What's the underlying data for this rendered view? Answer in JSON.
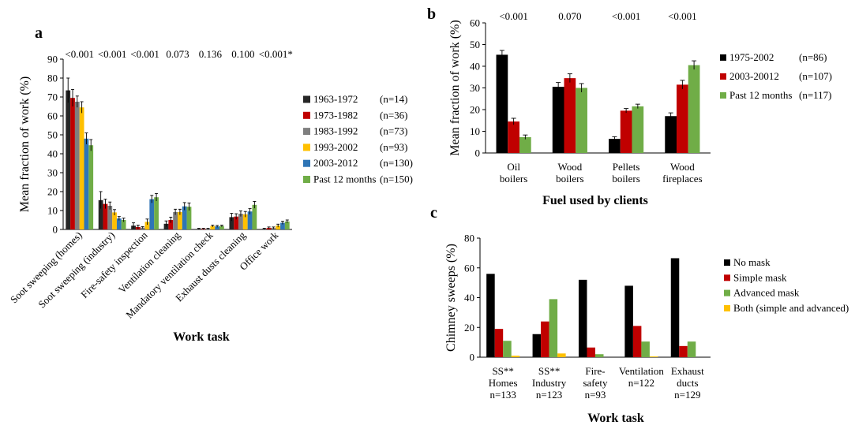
{
  "chart_data": [
    {
      "panel": "a",
      "type": "bar",
      "xlabel": "Work task",
      "ylabel": "Mean fraction of work (%)",
      "ylim": [
        0,
        90
      ],
      "yticks": [
        0,
        10,
        20,
        30,
        40,
        50,
        60,
        70,
        80,
        90
      ],
      "categories": [
        "Soot sweeping (homes)",
        "Soot sweeping (industry)",
        "Fire-safety inspection",
        "Ventilation cleaning",
        "Mandatory ventilation check",
        "Exhaust dusts cleaning",
        "Office work"
      ],
      "p_values": [
        "<0.001",
        "<0.001",
        "<0.001",
        "0.073",
        "0.136",
        "0.100",
        "<0.001*"
      ],
      "legend_position": "right",
      "series": [
        {
          "name": "1963-1972",
          "n": "(n=14)",
          "color": "#262626",
          "values": [
            73.5,
            15.5,
            2.0,
            3.0,
            0.3,
            6.5,
            0.3
          ],
          "errors": [
            6.5,
            4.5,
            1.5,
            1.5,
            0.3,
            2.0,
            0.3
          ]
        },
        {
          "name": "1973-1982",
          "n": "(n=36)",
          "color": "#c00000",
          "values": [
            69.5,
            13.5,
            1.3,
            5.0,
            0.3,
            6.8,
            0.8
          ],
          "errors": [
            4.5,
            2.5,
            1.0,
            1.5,
            0.3,
            1.5,
            0.5
          ]
        },
        {
          "name": "1983-1992",
          "n": "(n=73)",
          "color": "#7f7f7f",
          "values": [
            67.5,
            12.5,
            1.0,
            9.2,
            0.3,
            8.3,
            0.8
          ],
          "errors": [
            3.0,
            2.0,
            0.5,
            1.5,
            0.3,
            1.5,
            0.5
          ]
        },
        {
          "name": "1993-2002",
          "n": "(n=93)",
          "color": "#ffc000",
          "values": [
            64.5,
            9.0,
            4.0,
            9.2,
            1.8,
            8.0,
            2.0
          ],
          "errors": [
            3.0,
            1.5,
            1.5,
            1.5,
            0.5,
            1.5,
            0.8
          ]
        },
        {
          "name": "2003-2012",
          "n": "(n=130)",
          "color": "#2e75b6",
          "values": [
            48.0,
            5.8,
            16.0,
            12.2,
            1.6,
            9.5,
            3.5
          ],
          "errors": [
            3.0,
            1.0,
            2.0,
            2.0,
            0.5,
            1.5,
            0.8
          ]
        },
        {
          "name": "Past 12 months",
          "n": "(n=150)",
          "color": "#70ad47",
          "values": [
            44.5,
            5.0,
            17.0,
            12.0,
            1.8,
            13.0,
            4.2
          ],
          "errors": [
            3.0,
            1.0,
            2.0,
            2.0,
            0.5,
            1.8,
            0.8
          ]
        }
      ]
    },
    {
      "panel": "b",
      "type": "bar",
      "xlabel": "Fuel used by clients",
      "ylabel": "Mean fraction of work (%)",
      "ylim": [
        0,
        60
      ],
      "yticks": [
        0,
        10,
        20,
        30,
        40,
        50,
        60
      ],
      "categories": [
        [
          "Oil",
          "boilers"
        ],
        [
          "Wood",
          "boilers"
        ],
        [
          "Pellets",
          "boilers"
        ],
        [
          "Wood",
          "fireplaces"
        ]
      ],
      "p_values": [
        "<0.001",
        "0.070",
        "<0.001",
        "<0.001"
      ],
      "legend_position": "right",
      "series": [
        {
          "name": "1975-2002",
          "n": "(n=86)",
          "color": "#000000",
          "values": [
            45.3,
            30.5,
            6.5,
            17.0
          ],
          "errors": [
            2.0,
            2.0,
            1.0,
            1.5
          ]
        },
        {
          "name": "2003-20012",
          "n": "(n=107)",
          "color": "#c00000",
          "values": [
            14.5,
            34.5,
            19.5,
            31.5
          ],
          "errors": [
            1.5,
            2.0,
            1.0,
            2.0
          ]
        },
        {
          "name": "Past 12 months",
          "n": "(n=117)",
          "color": "#70ad47",
          "values": [
            7.3,
            30.0,
            21.5,
            40.5
          ],
          "errors": [
            1.0,
            2.0,
            1.0,
            2.0
          ]
        }
      ]
    },
    {
      "panel": "c",
      "type": "bar",
      "xlabel": "Work task",
      "ylabel": "Chimney sweeps (%)",
      "ylim": [
        0,
        80
      ],
      "yticks": [
        0,
        20,
        40,
        60,
        80
      ],
      "categories": [
        [
          "SS**",
          "Homes",
          "n=133"
        ],
        [
          "SS**",
          "Industry",
          "n=123"
        ],
        [
          "Fire-",
          "safety",
          "n=93"
        ],
        [
          "Ventilation",
          "n=122"
        ],
        [
          "Exhaust",
          "ducts",
          "n=129"
        ]
      ],
      "legend_position": "top-right",
      "series": [
        {
          "name": "No mask",
          "color": "#000000",
          "values": [
            56.0,
            15.5,
            52.0,
            48.0,
            66.5
          ]
        },
        {
          "name": "Simple mask",
          "color": "#c00000",
          "values": [
            19.0,
            24.0,
            6.5,
            21.0,
            7.5
          ]
        },
        {
          "name": "Advanced mask",
          "color": "#70ad47",
          "values": [
            11.0,
            39.0,
            2.0,
            10.5,
            10.5
          ]
        },
        {
          "name": "Both (simple and advanced)",
          "color": "#ffc000",
          "values": [
            1.0,
            2.5,
            0.0,
            0.5,
            0.0
          ]
        }
      ]
    }
  ]
}
